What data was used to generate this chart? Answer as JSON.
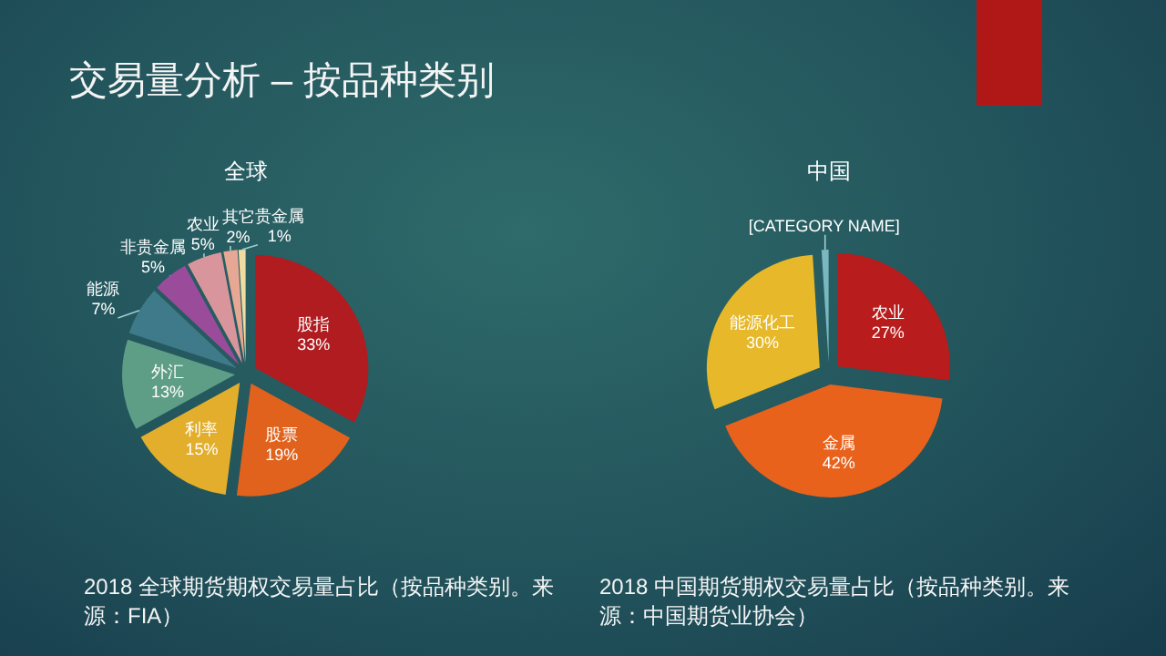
{
  "chart_data": [
    {
      "type": "pie",
      "title": "全球",
      "categories": [
        "股指",
        "股票",
        "利率",
        "外汇",
        "能源",
        "非贵金属",
        "农业",
        "其它",
        "贵金属"
      ],
      "values": [
        33,
        19,
        15,
        13,
        7,
        5,
        5,
        2,
        1
      ],
      "colors": [
        "#b01c1f",
        "#e0621c",
        "#e2ae2c",
        "#5e9e86",
        "#3f7a8a",
        "#9a4c9a",
        "#d8969c",
        "#e6a894",
        "#f0dca0"
      ],
      "value_labels": [
        "33%",
        "19%",
        "15%",
        "13%",
        "7%",
        "5%",
        "5%",
        "2%",
        "1%"
      ],
      "annotations": [
        "交易量分析 – 按品种类别",
        "2018 全球期货期权交易量占比（按品种类别。来源：FIA）"
      ]
    },
    {
      "type": "pie",
      "title": "中国",
      "categories": [
        "农业",
        "金属",
        "能源化工",
        "[CATEGORY NAME]"
      ],
      "values": [
        27,
        42,
        30,
        1
      ],
      "colors": [
        "#b81c1c",
        "#e8621c",
        "#e6b82a",
        "#7ab8c0"
      ],
      "value_labels": [
        "27%",
        "42%",
        "30%",
        null
      ],
      "annotations": [
        "2018 中国期货期权交易量占比（按品种类别。来源：中国期货业协会）"
      ]
    }
  ]
}
